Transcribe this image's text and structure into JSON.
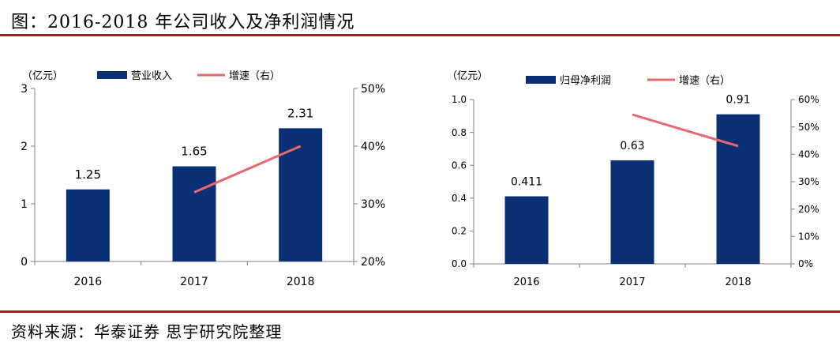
{
  "figure": {
    "title": "图：2016-2018 年公司收入及净利润情况",
    "source": "资料来源：华泰证券  思宇研究院整理"
  },
  "colors": {
    "bar": "#0b2f74",
    "line": "#e8696b",
    "rule": "#b0171e",
    "axis": "#808080"
  },
  "chart_data": [
    {
      "type": "bar+line",
      "unit_label": "（亿元）",
      "categories": [
        "2016",
        "2017",
        "2018"
      ],
      "bar_series": {
        "name": "营业收入",
        "values": [
          1.25,
          1.65,
          2.31
        ],
        "labels": [
          "1.25",
          "1.65",
          "2.31"
        ]
      },
      "line_series": {
        "name": "增速（右）",
        "values": [
          null,
          32.0,
          40.0
        ]
      },
      "ylim": [
        0,
        3
      ],
      "y_ticks": [
        0,
        1,
        2,
        3
      ],
      "y_tick_labels": [
        "0",
        "1",
        "2",
        "3"
      ],
      "y2lim": [
        20,
        50
      ],
      "y2_ticks": [
        20,
        30,
        40,
        50
      ],
      "y2_tick_labels": [
        "20%",
        "30%",
        "40%",
        "50%"
      ]
    },
    {
      "type": "bar+line",
      "unit_label": "（亿元）",
      "categories": [
        "2016",
        "2017",
        "2018"
      ],
      "bar_series": {
        "name": "归母净利润",
        "values": [
          0.411,
          0.63,
          0.91
        ],
        "labels": [
          "0.411",
          "0.63",
          "0.91"
        ]
      },
      "line_series": {
        "name": "增速（右）",
        "values": [
          null,
          54.5,
          43.0
        ]
      },
      "ylim": [
        0,
        1
      ],
      "y_ticks": [
        0,
        0.2,
        0.4,
        0.6,
        0.8,
        1.0
      ],
      "y_tick_labels": [
        "0.0",
        "0.2",
        "0.4",
        "0.6",
        "0.8",
        "1.0"
      ],
      "y2lim": [
        0,
        60
      ],
      "y2_ticks": [
        0,
        10,
        20,
        30,
        40,
        50,
        60
      ],
      "y2_tick_labels": [
        "0%",
        "10%",
        "20%",
        "30%",
        "40%",
        "50%",
        "60%"
      ]
    }
  ]
}
